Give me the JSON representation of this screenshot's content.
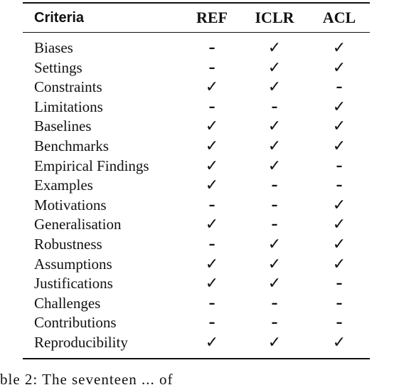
{
  "table": {
    "headers": {
      "criteria": "Criteria",
      "ref": "REF",
      "iclr": "ICLR",
      "acl": "ACL"
    },
    "symbols": {
      "yes": "✓",
      "no": "–"
    },
    "rows": [
      {
        "label": "Biases",
        "ref": "–",
        "iclr": "✓",
        "acl": "✓"
      },
      {
        "label": "Settings",
        "ref": "–",
        "iclr": "✓",
        "acl": "✓"
      },
      {
        "label": "Constraints",
        "ref": "✓",
        "iclr": "✓",
        "acl": "–"
      },
      {
        "label": "Limitations",
        "ref": "–",
        "iclr": "–",
        "acl": "✓"
      },
      {
        "label": "Baselines",
        "ref": "✓",
        "iclr": "✓",
        "acl": "✓"
      },
      {
        "label": "Benchmarks",
        "ref": "✓",
        "iclr": "✓",
        "acl": "✓"
      },
      {
        "label": "Empirical Findings",
        "ref": "✓",
        "iclr": "✓",
        "acl": "–"
      },
      {
        "label": "Examples",
        "ref": "✓",
        "iclr": "–",
        "acl": "–"
      },
      {
        "label": "Motivations",
        "ref": "–",
        "iclr": "–",
        "acl": "✓"
      },
      {
        "label": "Generalisation",
        "ref": "✓",
        "iclr": "–",
        "acl": "✓"
      },
      {
        "label": "Robustness",
        "ref": "–",
        "iclr": "✓",
        "acl": "✓"
      },
      {
        "label": "Assumptions",
        "ref": "✓",
        "iclr": "✓",
        "acl": "✓"
      },
      {
        "label": "Justifications",
        "ref": "✓",
        "iclr": "✓",
        "acl": "–"
      },
      {
        "label": "Challenges",
        "ref": "–",
        "iclr": "–",
        "acl": "–"
      },
      {
        "label": "Contributions",
        "ref": "–",
        "iclr": "–",
        "acl": "–"
      },
      {
        "label": "Reproducibility",
        "ref": "✓",
        "iclr": "✓",
        "acl": "✓"
      }
    ]
  },
  "caption": "ble 2: The seventeen ... of"
}
